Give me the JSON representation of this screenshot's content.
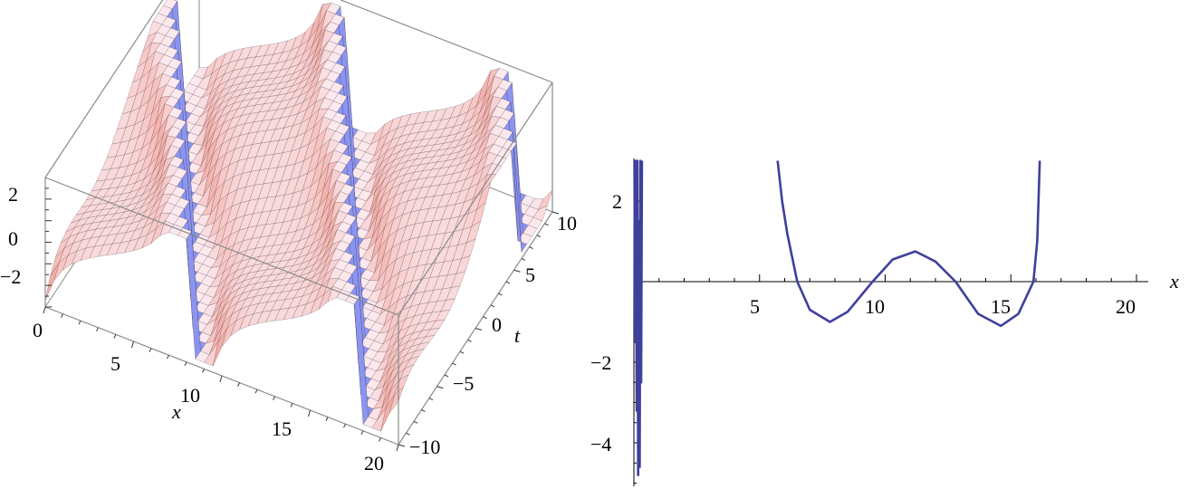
{
  "chart_data": [
    {
      "type": "surface",
      "axes": {
        "x_label": "x",
        "t_label": "t"
      },
      "x_range": [
        0,
        20
      ],
      "t_range": [
        -10,
        10
      ],
      "z_range": [
        -3,
        3
      ],
      "x_ticks": [
        "0",
        "5",
        "10",
        "15",
        "20"
      ],
      "t_ticks": [
        "−10",
        "−5",
        "0",
        "5",
        "10"
      ],
      "z_ticks": [
        "2",
        "0",
        "−2"
      ],
      "colors": {
        "warm": "#f08878",
        "light": "#fbe9ee",
        "cool": "#7f8cf0",
        "box": "#8a8a8a"
      }
    },
    {
      "type": "line",
      "xlabel": "x",
      "xlim": [
        0,
        20
      ],
      "ylim": [
        -5,
        3
      ],
      "x_ticks": [
        "5",
        "10",
        "15",
        "20"
      ],
      "y_ticks": [
        "2",
        "−2",
        "−4"
      ],
      "color": "#3f3f9c",
      "series": [
        {
          "x": [
            0.02,
            0.05,
            0.08,
            0.11,
            0.14,
            0.17,
            0.2,
            0.23,
            0.26,
            0.29,
            0.32
          ],
          "y": [
            3,
            -1.5,
            3,
            -3.2,
            3,
            -4.8,
            1.5,
            -4.6,
            3,
            -2.5,
            3
          ]
        },
        {
          "x": [
            5.72,
            5.9,
            6.1,
            6.5,
            7,
            7.8,
            8.5,
            9.5,
            10.3,
            11.2,
            12,
            12.8,
            13.7,
            14.6,
            15.3,
            15.9,
            16.05,
            16.15
          ],
          "y": [
            3,
            2,
            1.2,
            0,
            -0.7,
            -1.0,
            -0.75,
            0,
            0.55,
            0.75,
            0.5,
            0,
            -0.8,
            -1.1,
            -0.8,
            0,
            1,
            3
          ]
        }
      ]
    }
  ]
}
